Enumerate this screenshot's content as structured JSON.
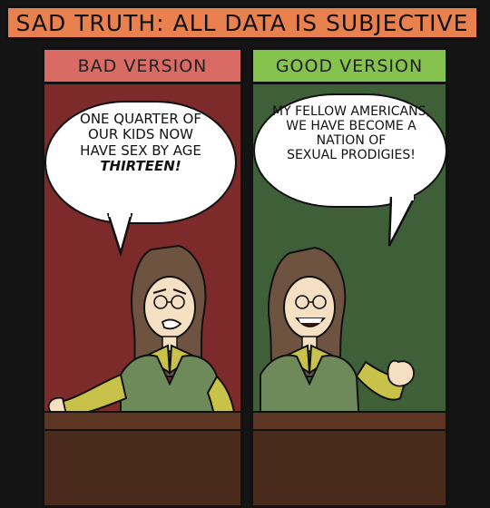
{
  "title": "SAD TRUTH: ALL DATA IS SUBJECTIVE",
  "panels": [
    {
      "label": "BAD VERSION",
      "speech": [
        "ONE QUARTER OF",
        "OUR KIDS NOW",
        "HAVE SEX BY AGE"
      ],
      "speech_emphasis": "THIRTEEN!"
    },
    {
      "label": "GOOD VERSION",
      "speech": [
        "MY FELLOW AMERICANS,",
        "WE HAVE BECOME A",
        "NATION OF",
        "SEXUAL PRODIGIES!"
      ]
    }
  ],
  "colors": {
    "title_bg": "#e9814f",
    "bad_label_bg": "#d96a64",
    "good_label_bg": "#86c24e",
    "bad_panel_bg": "#7d2a2a",
    "good_panel_bg": "#3f5f39"
  }
}
